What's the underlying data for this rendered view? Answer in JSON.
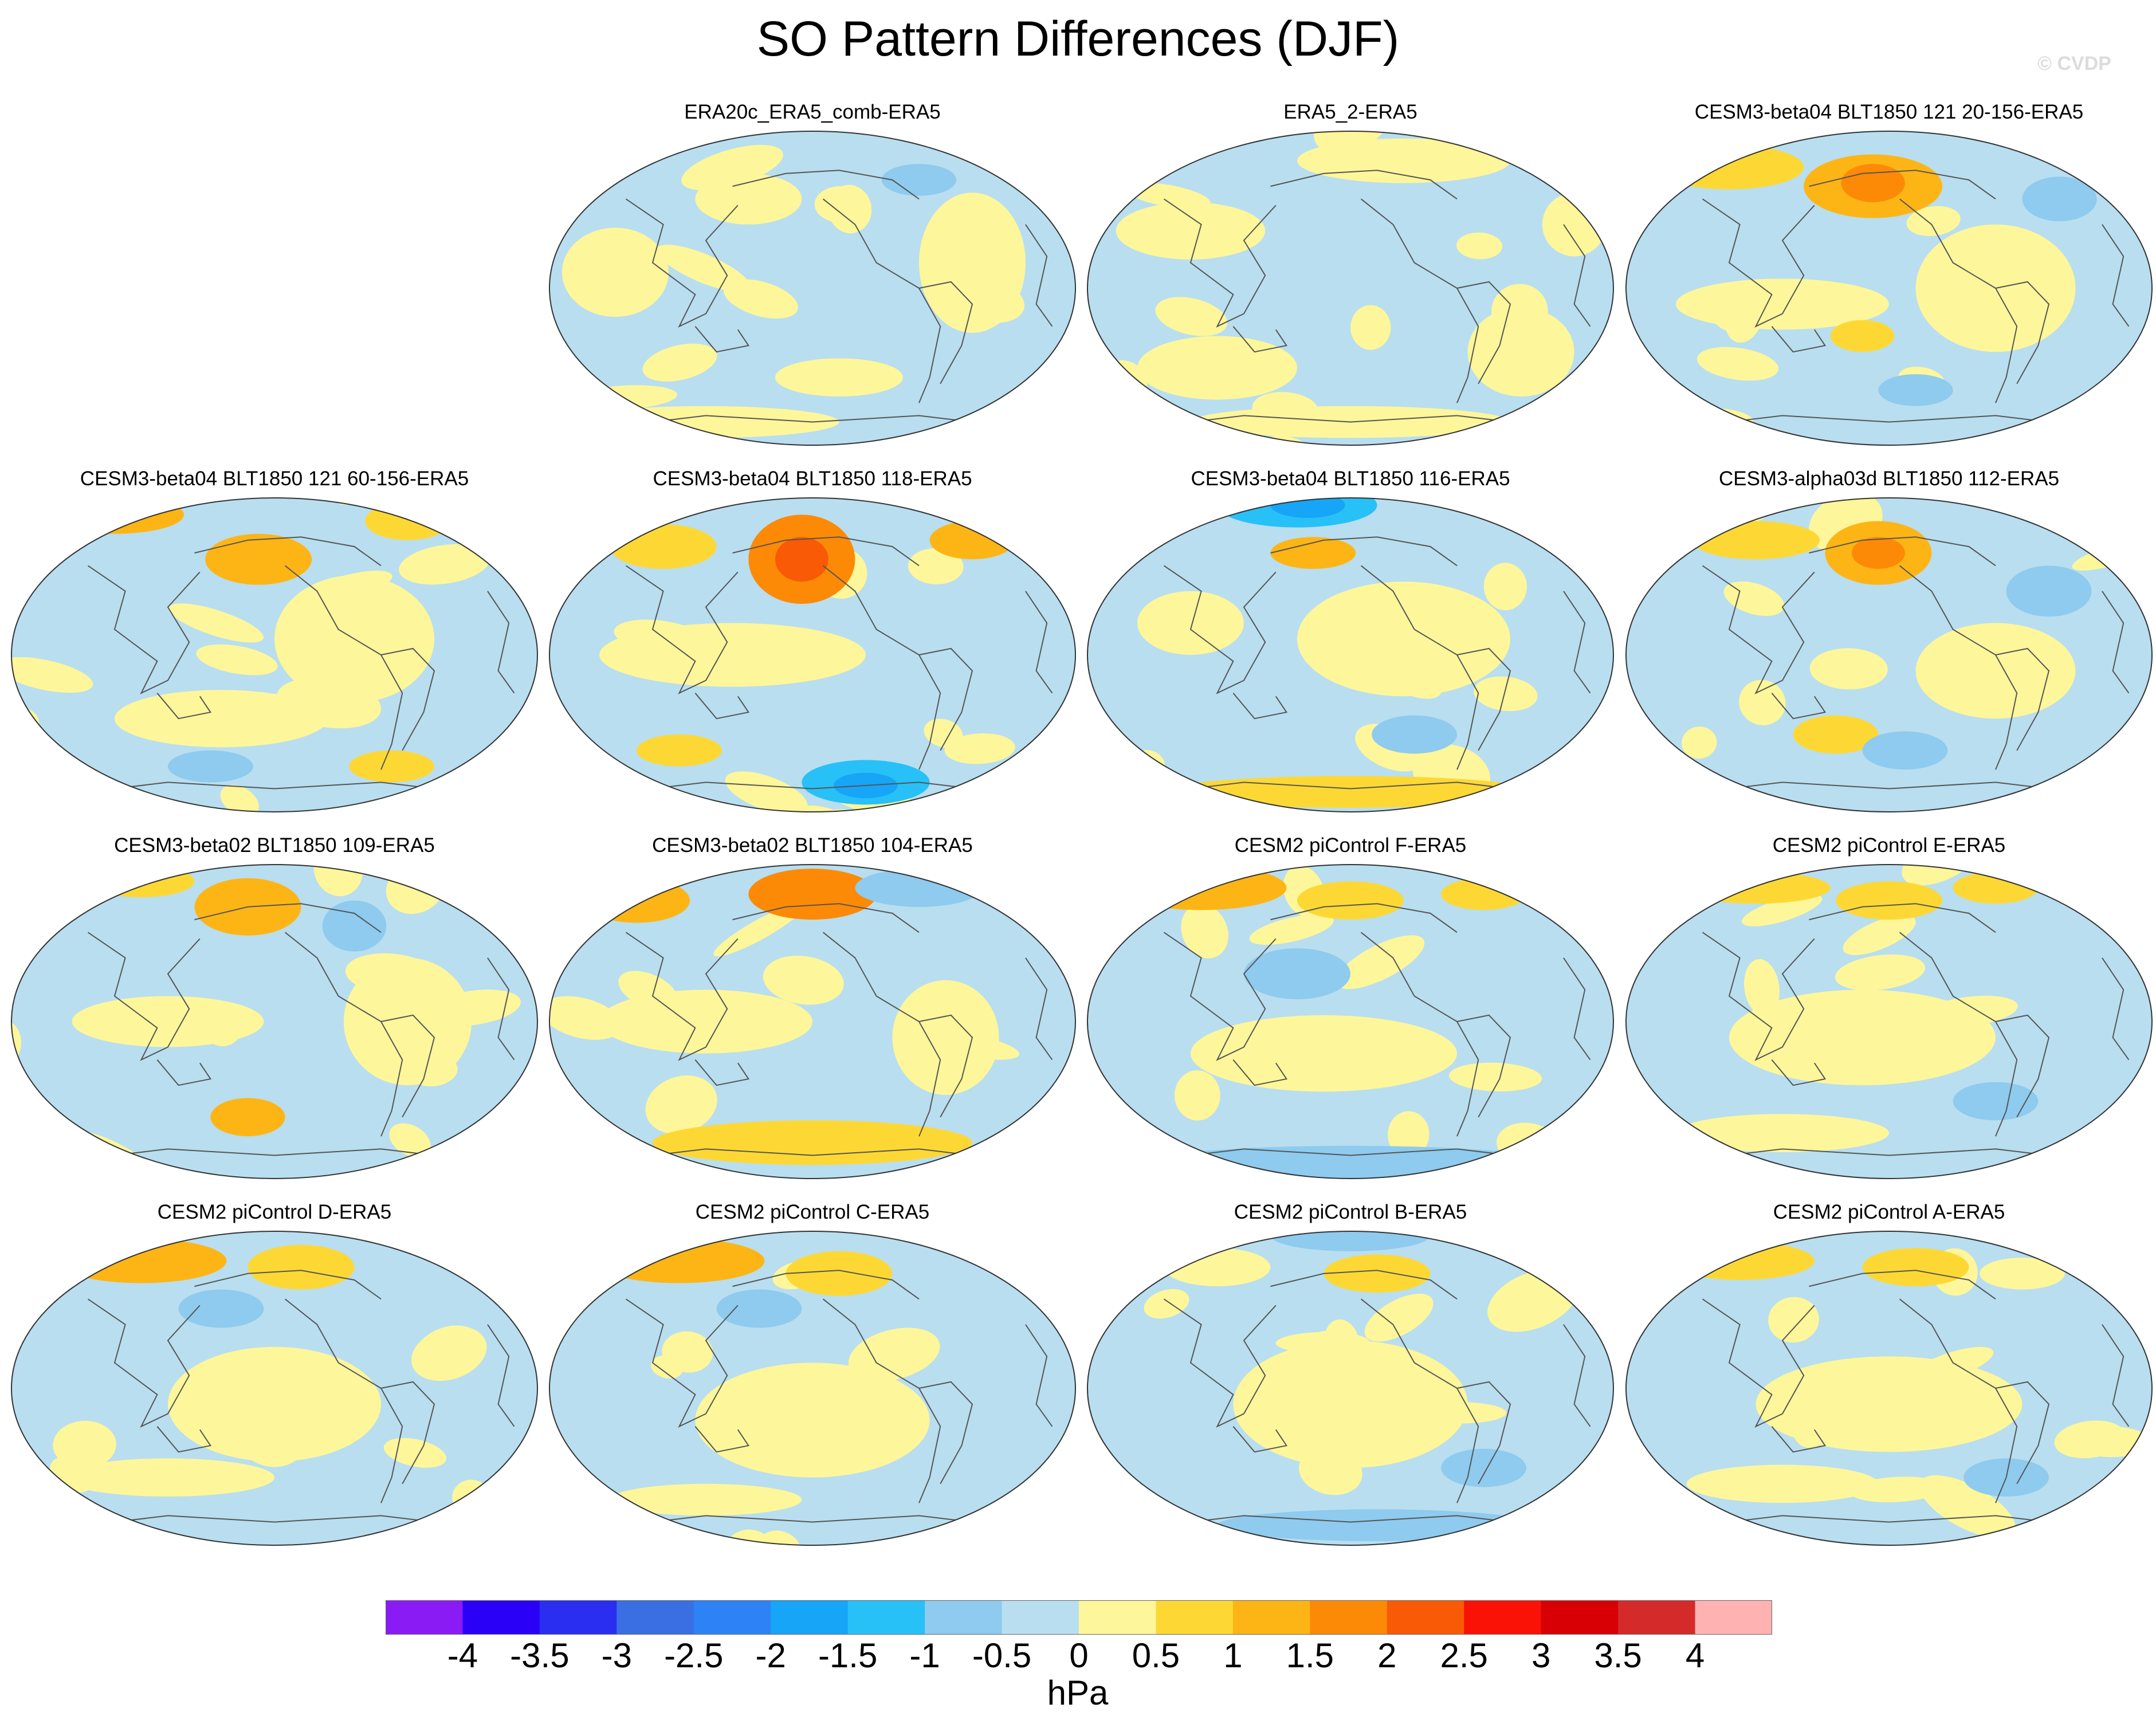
{
  "title": "SO Pattern Differences (DJF)",
  "watermark": "© CVDP",
  "chart_data": {
    "type": "heatmap",
    "description_fields": "panel titles and colorbar levels",
    "colors": {
      "land_outline": "#555555",
      "map_border": "#333333",
      "neg_0_0p5": "#b8def0",
      "pos_0_0p5": "#fef69a",
      "pos_0p5_1": "#fdd835",
      "pos_1_1p5": "#fdb515",
      "pos_1p5_2": "#fd8a06",
      "pos_2_2p5": "#f85a06",
      "neg_0p5_1": "#8ecbee",
      "neg_1_1p5": "#27c1f7",
      "neg_1p5_2": "#17a5f7"
    },
    "panels": [
      {
        "title": "ERA20c_ERA5_comb-ERA5"
      },
      {
        "title": "ERA5_2-ERA5"
      },
      {
        "title": "CESM3-beta04 BLT1850 121 20-156-ERA5"
      },
      {
        "title": "CESM3-beta04 BLT1850 121 60-156-ERA5"
      },
      {
        "title": "CESM3-beta04 BLT1850 118-ERA5"
      },
      {
        "title": "CESM3-beta04 BLT1850 116-ERA5"
      },
      {
        "title": "CESM3-alpha03d BLT1850 112-ERA5"
      },
      {
        "title": "CESM3-beta02 BLT1850 109-ERA5"
      },
      {
        "title": "CESM3-beta02 BLT1850 104-ERA5"
      },
      {
        "title": "CESM2 piControl F-ERA5"
      },
      {
        "title": "CESM2 piControl E-ERA5"
      },
      {
        "title": "CESM2 piControl D-ERA5"
      },
      {
        "title": "CESM2 piControl C-ERA5"
      },
      {
        "title": "CESM2 piControl B-ERA5"
      },
      {
        "title": "CESM2 piControl A-ERA5"
      }
    ],
    "colorbar": {
      "levels": [
        "-4",
        "-3.5",
        "-3",
        "-2.5",
        "-2",
        "-1.5",
        "-1",
        "-0.5",
        "0",
        "0.5",
        "1",
        "1.5",
        "2",
        "2.5",
        "3",
        "3.5",
        "4"
      ],
      "colors": [
        "#8a1bf5",
        "#2a00f6",
        "#2a2ef0",
        "#3a6fe3",
        "#2d83f5",
        "#17a5f7",
        "#27c1f7",
        "#8ecbee",
        "#b8def0",
        "#fef69a",
        "#fdd835",
        "#fdb515",
        "#fd8a06",
        "#f85a06",
        "#fa1206",
        "#d80004",
        "#d42a2a",
        "#ffb2b2"
      ],
      "units": "hPa"
    }
  }
}
